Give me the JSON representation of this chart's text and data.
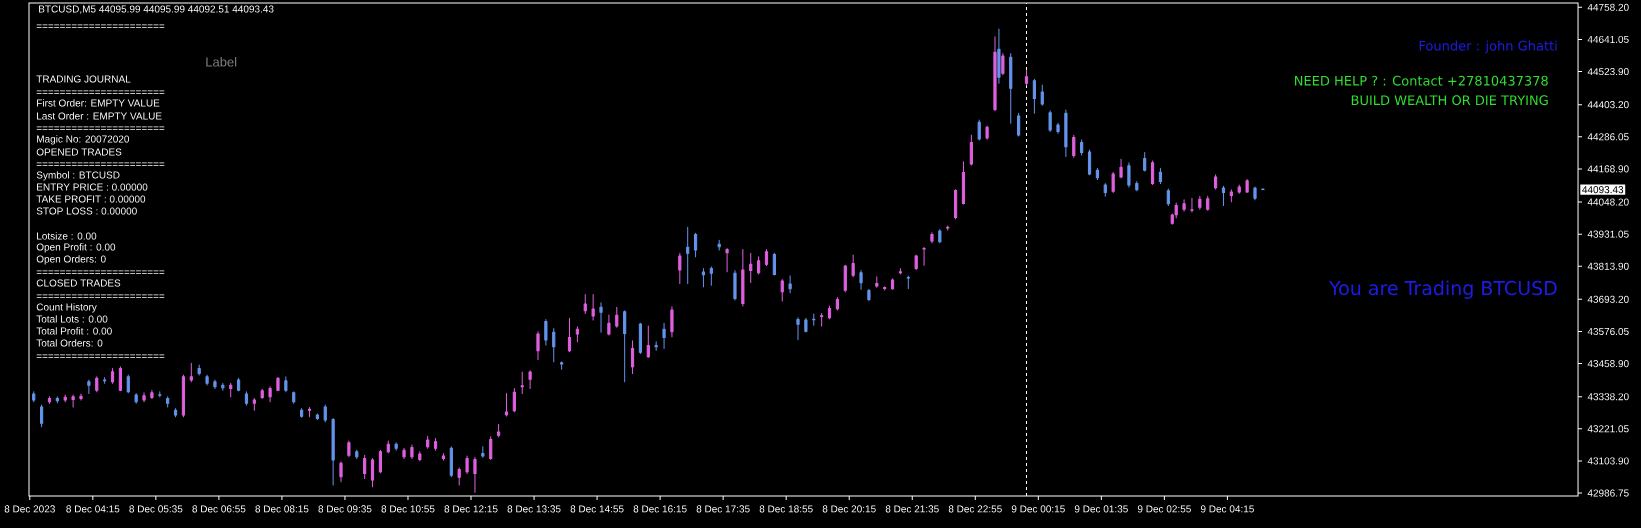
{
  "chart_data": {
    "type": "candlestick",
    "title": "BTCUSD,M5 44095.99 44095.99 44092.51 44093.43",
    "x": [
      "2023-12-08T03:00",
      "2023-12-08T03:10",
      "2023-12-08T03:20",
      "2023-12-08T03:30",
      "2023-12-08T03:40",
      "2023-12-08T03:50",
      "2023-12-08T04:00",
      "2023-12-08T04:10",
      "2023-12-08T04:20",
      "2023-12-08T04:30",
      "2023-12-08T04:40",
      "2023-12-08T04:50",
      "2023-12-08T05:00",
      "2023-12-08T05:10",
      "2023-12-08T05:20",
      "2023-12-08T05:30",
      "2023-12-08T05:40",
      "2023-12-08T05:50",
      "2023-12-08T06:00",
      "2023-12-08T06:10",
      "2023-12-08T06:20",
      "2023-12-08T06:30",
      "2023-12-08T06:40",
      "2023-12-08T06:50",
      "2023-12-08T07:00",
      "2023-12-08T07:10",
      "2023-12-08T07:20",
      "2023-12-08T07:30",
      "2023-12-08T07:40",
      "2023-12-08T07:50",
      "2023-12-08T08:00",
      "2023-12-08T08:10",
      "2023-12-08T08:20",
      "2023-12-08T08:30",
      "2023-12-08T08:40",
      "2023-12-08T08:50",
      "2023-12-08T09:00",
      "2023-12-08T09:10",
      "2023-12-08T09:20",
      "2023-12-08T09:30",
      "2023-12-08T09:40",
      "2023-12-08T09:50",
      "2023-12-08T10:00",
      "2023-12-08T10:10",
      "2023-12-08T10:20",
      "2023-12-08T10:30",
      "2023-12-08T10:40",
      "2023-12-08T10:50",
      "2023-12-08T11:00",
      "2023-12-08T11:10",
      "2023-12-08T11:20",
      "2023-12-08T11:30",
      "2023-12-08T11:40",
      "2023-12-08T11:50",
      "2023-12-08T12:00",
      "2023-12-08T12:10",
      "2023-12-08T12:20",
      "2023-12-08T12:30",
      "2023-12-08T12:40",
      "2023-12-08T12:50",
      "2023-12-08T13:00",
      "2023-12-08T13:10",
      "2023-12-08T13:20",
      "2023-12-08T13:30",
      "2023-12-08T13:40",
      "2023-12-08T13:50",
      "2023-12-08T14:00",
      "2023-12-08T14:10",
      "2023-12-08T14:20",
      "2023-12-08T14:30",
      "2023-12-08T14:40",
      "2023-12-08T14:50",
      "2023-12-08T15:00",
      "2023-12-08T15:10",
      "2023-12-08T15:20",
      "2023-12-08T15:30",
      "2023-12-08T15:40",
      "2023-12-08T15:50",
      "2023-12-08T16:00",
      "2023-12-08T16:10",
      "2023-12-08T16:20",
      "2023-12-08T16:30",
      "2023-12-08T16:40",
      "2023-12-08T16:50",
      "2023-12-08T17:00",
      "2023-12-08T17:10",
      "2023-12-08T17:20",
      "2023-12-08T17:30",
      "2023-12-08T17:40",
      "2023-12-08T17:50",
      "2023-12-08T18:00",
      "2023-12-08T18:10",
      "2023-12-08T18:20",
      "2023-12-08T18:30",
      "2023-12-08T18:40",
      "2023-12-08T18:50",
      "2023-12-08T19:00",
      "2023-12-08T19:10",
      "2023-12-08T19:20",
      "2023-12-08T19:30",
      "2023-12-08T19:40",
      "2023-12-08T19:50",
      "2023-12-08T20:00",
      "2023-12-08T20:10",
      "2023-12-08T20:20",
      "2023-12-08T20:30",
      "2023-12-08T20:40",
      "2023-12-08T20:50",
      "2023-12-08T21:00",
      "2023-12-08T21:10",
      "2023-12-08T21:20",
      "2023-12-08T21:30",
      "2023-12-08T21:40",
      "2023-12-08T21:50",
      "2023-12-08T22:00",
      "2023-12-08T22:10",
      "2023-12-08T22:20",
      "2023-12-08T22:30",
      "2023-12-08T22:40",
      "2023-12-08T22:50",
      "2023-12-08T23:00",
      "2023-12-08T23:10",
      "2023-12-08T23:20",
      "2023-12-08T23:25",
      "2023-12-08T23:30",
      "2023-12-08T23:40",
      "2023-12-08T23:50",
      "2023-12-09T00:00",
      "2023-12-09T00:10",
      "2023-12-09T00:20",
      "2023-12-09T00:30",
      "2023-12-09T00:40",
      "2023-12-09T00:50",
      "2023-12-09T01:00",
      "2023-12-09T01:10",
      "2023-12-09T01:20",
      "2023-12-09T01:30",
      "2023-12-09T01:40",
      "2023-12-09T01:50",
      "2023-12-09T02:00",
      "2023-12-09T02:10",
      "2023-12-09T02:20",
      "2023-12-09T02:30",
      "2023-12-09T02:40",
      "2023-12-09T02:50",
      "2023-12-09T03:00",
      "2023-12-09T03:05",
      "2023-12-09T03:10",
      "2023-12-09T03:20",
      "2023-12-09T03:30",
      "2023-12-09T03:40",
      "2023-12-09T03:50",
      "2023-12-09T04:00",
      "2023-12-09T04:10",
      "2023-12-09T04:20",
      "2023-12-09T04:30",
      "2023-12-09T04:40",
      "2023-12-09T04:50",
      "2023-12-09T05:00"
    ],
    "ohlc": [
      [
        43348,
        43356,
        43320,
        43326
      ],
      [
        43301,
        43308,
        43229,
        43241
      ],
      [
        43320,
        43338,
        43314,
        43332
      ],
      [
        43332,
        43338,
        43316,
        43323
      ],
      [
        43326,
        43344,
        43320,
        43336
      ],
      [
        43328,
        43344,
        43301,
        43338
      ],
      [
        43332,
        43348,
        43326,
        43340
      ],
      [
        43393,
        43399,
        43350,
        43380
      ],
      [
        43362,
        43411,
        43356,
        43405
      ],
      [
        43399,
        43408,
        43387,
        43396
      ],
      [
        43393,
        43441,
        43387,
        43429
      ],
      [
        43362,
        43447,
        43360,
        43441
      ],
      [
        43411,
        43417,
        43353,
        43356
      ],
      [
        43344,
        43350,
        43314,
        43320
      ],
      [
        43326,
        43353,
        43320,
        43342
      ],
      [
        43335,
        43362,
        43332,
        43353
      ],
      [
        43345,
        43356,
        43338,
        43343
      ],
      [
        43332,
        43338,
        43301,
        43314
      ],
      [
        43289,
        43295,
        43265,
        43271
      ],
      [
        43271,
        43417,
        43265,
        43411
      ],
      [
        43399,
        43460,
        43393,
        43411
      ],
      [
        43441,
        43454,
        43417,
        43423
      ],
      [
        43411,
        43417,
        43381,
        43387
      ],
      [
        43393,
        43399,
        43368,
        43374
      ],
      [
        43380,
        43387,
        43362,
        43371
      ],
      [
        43368,
        43387,
        43338,
        43380
      ],
      [
        43399,
        43405,
        43360,
        43362
      ],
      [
        43348,
        43356,
        43308,
        43314
      ],
      [
        43314,
        43332,
        43289,
        43326
      ],
      [
        43335,
        43365,
        43332,
        43360
      ],
      [
        43338,
        43374,
        43320,
        43368
      ],
      [
        43362,
        43408,
        43360,
        43405
      ],
      [
        43396,
        43411,
        43356,
        43362
      ],
      [
        43353,
        43356,
        43314,
        43320
      ],
      [
        43289,
        43295,
        43263,
        43267
      ],
      [
        43289,
        43299,
        43265,
        43292
      ],
      [
        43271,
        43275,
        43255,
        43259
      ],
      [
        43301,
        43308,
        43247,
        43253
      ],
      [
        43255,
        43259,
        43016,
        43107
      ],
      [
        43046,
        43101,
        43028,
        43095
      ],
      [
        43125,
        43177,
        43119,
        43170
      ],
      [
        43137,
        43143,
        43113,
        43119
      ],
      [
        43058,
        43125,
        43040,
        43113
      ],
      [
        43034,
        43113,
        43010,
        43107
      ],
      [
        43064,
        43143,
        43061,
        43137
      ],
      [
        43137,
        43177,
        43134,
        43165
      ],
      [
        43165,
        43170,
        43143,
        43150
      ],
      [
        43119,
        43150,
        43113,
        43143
      ],
      [
        43119,
        43162,
        43113,
        43153
      ],
      [
        43109,
        43137,
        43105,
        43129
      ],
      [
        43156,
        43194,
        43150,
        43180
      ],
      [
        43150,
        43186,
        43143,
        43174
      ],
      [
        43113,
        43131,
        43107,
        43122
      ],
      [
        43150,
        43156,
        43046,
        43052
      ],
      [
        43044,
        43079,
        43016,
        43073
      ],
      [
        43064,
        43122,
        43058,
        43113
      ],
      [
        43058,
        43117,
        42990,
        43109
      ],
      [
        43131,
        43156,
        43117,
        43122
      ],
      [
        43113,
        43192,
        43109,
        43182
      ],
      [
        43198,
        43238,
        43192,
        43209
      ],
      [
        43272,
        43350,
        43268,
        43282
      ],
      [
        43287,
        43368,
        43283,
        43354
      ],
      [
        43374,
        43428,
        43350,
        43378
      ],
      [
        43402,
        43433,
        43368,
        43428
      ],
      [
        43506,
        43575,
        43474,
        43567
      ],
      [
        43612,
        43620,
        43527,
        43545
      ],
      [
        43573,
        43587,
        43466,
        43520
      ],
      [
        43462,
        43466,
        43438,
        43457
      ],
      [
        43506,
        43624,
        43502,
        43554
      ],
      [
        43567,
        43593,
        43539,
        43584
      ],
      [
        43652,
        43711,
        43642,
        43676
      ],
      [
        43632,
        43711,
        43618,
        43658
      ],
      [
        43664,
        43681,
        43573,
        43646
      ],
      [
        43567,
        43636,
        43563,
        43606
      ],
      [
        43596,
        43664,
        43591,
        43635
      ],
      [
        43648,
        43652,
        43393,
        43569
      ],
      [
        43447,
        43542,
        43423,
        43514
      ],
      [
        43603,
        43606,
        43496,
        43500
      ],
      [
        43484,
        43596,
        43481,
        43525
      ],
      [
        43525,
        43539,
        43508,
        43520
      ],
      [
        43584,
        43606,
        43514,
        43554
      ],
      [
        43575,
        43666,
        43557,
        43654
      ],
      [
        43800,
        43861,
        43751,
        43851
      ],
      [
        43883,
        43956,
        43751,
        43861
      ],
      [
        43930,
        43934,
        43849,
        43873
      ],
      [
        43793,
        43806,
        43739,
        43783
      ],
      [
        43806,
        43812,
        43745,
        43788
      ],
      [
        43894,
        43909,
        43873,
        43885
      ],
      [
        43863,
        43879,
        43794,
        43875
      ],
      [
        43788,
        43798,
        43691,
        43696
      ],
      [
        43678,
        43875,
        43669,
        43800
      ],
      [
        43798,
        43861,
        43755,
        43821
      ],
      [
        43790,
        43849,
        43786,
        43834
      ],
      [
        43821,
        43875,
        43817,
        43867
      ],
      [
        43857,
        43861,
        43782,
        43784
      ],
      [
        43721,
        43766,
        43687,
        43760
      ],
      [
        43749,
        43779,
        43717,
        43732
      ],
      [
        43620,
        43626,
        43547,
        43602
      ],
      [
        43618,
        43624,
        43574,
        43577
      ],
      [
        43621,
        43640,
        43599,
        43619
      ],
      [
        43631,
        43642,
        43596,
        43633
      ],
      [
        43626,
        43669,
        43622,
        43660
      ],
      [
        43659,
        43700,
        43654,
        43693
      ],
      [
        43726,
        43818,
        43721,
        43815
      ],
      [
        43781,
        43855,
        43776,
        43824
      ],
      [
        43790,
        43798,
        43730,
        43754
      ],
      [
        43725,
        43730,
        43688,
        43693
      ],
      [
        43742,
        43776,
        43737,
        43751
      ],
      [
        43733,
        43739,
        43727,
        43736
      ],
      [
        43732,
        43768,
        43730,
        43764
      ],
      [
        43790,
        43806,
        43786,
        43794
      ],
      [
        43773,
        43778,
        43733,
        43771
      ],
      [
        43806,
        43855,
        43802,
        43851
      ],
      [
        43877,
        43883,
        43818,
        43879
      ],
      [
        43906,
        43936,
        43900,
        43930
      ],
      [
        43942,
        43948,
        43900,
        43903
      ],
      [
        43953,
        43961,
        43946,
        43956
      ],
      [
        43992,
        44094,
        43987,
        44090
      ],
      [
        44043,
        44195,
        44041,
        44156
      ],
      [
        44187,
        44293,
        44183,
        44265
      ],
      [
        44339,
        44347,
        44274,
        44278
      ],
      [
        44282,
        44325,
        44277,
        44321
      ],
      [
        44386,
        44651,
        44381,
        44594
      ],
      [
        44605,
        44679,
        44481,
        44503
      ],
      [
        44518,
        44590,
        44512,
        44581
      ],
      [
        44576,
        44590,
        44335,
        44463
      ],
      [
        44362,
        44372,
        44289,
        44293
      ],
      [
        44481,
        44530,
        44475,
        44505
      ],
      [
        44490,
        44496,
        44372,
        44426
      ],
      [
        44449,
        44475,
        44401,
        44406
      ],
      [
        44374,
        44381,
        44305,
        44311
      ],
      [
        44329,
        44335,
        44299,
        44305
      ],
      [
        44372,
        44384,
        44214,
        44250
      ],
      [
        44218,
        44292,
        44211,
        44283
      ],
      [
        44265,
        44275,
        44220,
        44229
      ],
      [
        44231,
        44238,
        44148,
        44150
      ],
      [
        44164,
        44171,
        44130,
        44137
      ],
      [
        44110,
        44116,
        44069,
        44083
      ],
      [
        44087,
        44157,
        44083,
        44150
      ],
      [
        44139,
        44204,
        44137,
        44175
      ],
      [
        44180,
        44191,
        44103,
        44110
      ],
      [
        44116,
        44123,
        44089,
        44093
      ],
      [
        44207,
        44229,
        44161,
        44164
      ],
      [
        44116,
        44198,
        44112,
        44191
      ],
      [
        44157,
        44171,
        44116,
        44123
      ],
      [
        44089,
        44096,
        44035,
        44042
      ],
      [
        43971,
        44004,
        43967,
        44001
      ],
      [
        44002,
        44045,
        43991,
        44035
      ],
      [
        44022,
        44056,
        44015,
        44042
      ],
      [
        44018,
        44062,
        44012,
        44020
      ],
      [
        44029,
        44069,
        44022,
        44058
      ],
      [
        44022,
        44069,
        44018,
        44060
      ],
      [
        44100,
        44148,
        44096,
        44139
      ],
      [
        44099,
        44106,
        44035,
        44083
      ],
      [
        44072,
        44093,
        44049,
        44085
      ],
      [
        44085,
        44110,
        44080,
        44103
      ],
      [
        44085,
        44130,
        44083,
        44126
      ],
      [
        44099,
        44103,
        44056,
        44062
      ],
      [
        44095.99,
        44095.99,
        44092.51,
        44093.43
      ]
    ],
    "colors": [
      "#6495ed",
      "#6495ed",
      "#e060e0",
      "#6495ed",
      "#e060e0",
      "#e060e0",
      "#e060e0",
      "#6495ed",
      "#e060e0",
      "#6495ed",
      "#e060e0",
      "#e060e0",
      "#6495ed",
      "#6495ed",
      "#e060e0",
      "#e060e0",
      "#6495ed",
      "#6495ed",
      "#6495ed",
      "#e060e0",
      "#e060e0",
      "#6495ed",
      "#6495ed",
      "#6495ed",
      "#6495ed",
      "#e060e0",
      "#6495ed",
      "#6495ed",
      "#e060e0",
      "#e060e0",
      "#e060e0",
      "#e060e0",
      "#6495ed",
      "#6495ed",
      "#6495ed",
      "#e060e0",
      "#6495ed",
      "#6495ed",
      "#6495ed",
      "#e060e0",
      "#e060e0",
      "#6495ed",
      "#e060e0",
      "#e060e0",
      "#e060e0",
      "#e060e0",
      "#6495ed",
      "#e060e0",
      "#e060e0",
      "#e060e0",
      "#e060e0",
      "#e060e0",
      "#e060e0",
      "#6495ed",
      "#e060e0",
      "#e060e0",
      "#e060e0",
      "#6495ed",
      "#e060e0",
      "#e060e0",
      "#e060e0",
      "#e060e0",
      "#e060e0",
      "#e060e0",
      "#e060e0",
      "#6495ed",
      "#6495ed",
      "#6495ed",
      "#e060e0",
      "#e060e0",
      "#e060e0",
      "#e060e0",
      "#6495ed",
      "#e060e0",
      "#e060e0",
      "#6495ed",
      "#e060e0",
      "#6495ed",
      "#e060e0",
      "#6495ed",
      "#6495ed",
      "#e060e0",
      "#e060e0",
      "#6495ed",
      "#6495ed",
      "#6495ed",
      "#6495ed",
      "#6495ed",
      "#e060e0",
      "#6495ed",
      "#e060e0",
      "#e060e0",
      "#e060e0",
      "#e060e0",
      "#6495ed",
      "#e060e0",
      "#6495ed",
      "#6495ed",
      "#6495ed",
      "#6495ed",
      "#e060e0",
      "#e060e0",
      "#e060e0",
      "#e060e0",
      "#e060e0",
      "#6495ed",
      "#6495ed",
      "#e060e0",
      "#e060e0",
      "#e060e0",
      "#e060e0",
      "#6495ed",
      "#e060e0",
      "#e060e0",
      "#e060e0",
      "#6495ed",
      "#e060e0",
      "#e060e0",
      "#e060e0",
      "#e060e0",
      "#6495ed",
      "#e060e0",
      "#e060e0",
      "#6495ed",
      "#e060e0",
      "#6495ed",
      "#6495ed",
      "#e060e0",
      "#6495ed",
      "#6495ed",
      "#6495ed",
      "#6495ed",
      "#6495ed",
      "#e060e0",
      "#6495ed",
      "#6495ed",
      "#6495ed",
      "#6495ed",
      "#e060e0",
      "#e060e0",
      "#6495ed",
      "#6495ed",
      "#6495ed",
      "#e060e0",
      "#6495ed",
      "#6495ed",
      "#e060e0",
      "#e060e0",
      "#e060e0",
      "#e060e0",
      "#e060e0",
      "#e060e0",
      "#e060e0",
      "#6495ed",
      "#e060e0",
      "#e060e0",
      "#e060e0",
      "#6495ed",
      "#6495ed"
    ],
    "xlim": [
      "2023-12-08T02:54",
      "2023-12-09T11:40"
    ],
    "xticks": [
      {
        "value": "2023-12-08T02:55",
        "label": "8 Dec 2023"
      },
      {
        "value": "2023-12-08T04:15",
        "label": "8 Dec 04:15"
      },
      {
        "value": "2023-12-08T05:35",
        "label": "8 Dec 05:35"
      },
      {
        "value": "2023-12-08T06:55",
        "label": "8 Dec 06:55"
      },
      {
        "value": "2023-12-08T08:15",
        "label": "8 Dec 08:15"
      },
      {
        "value": "2023-12-08T09:35",
        "label": "8 Dec 09:35"
      },
      {
        "value": "2023-12-08T10:55",
        "label": "8 Dec 10:55"
      },
      {
        "value": "2023-12-08T12:15",
        "label": "8 Dec 12:15"
      },
      {
        "value": "2023-12-08T13:35",
        "label": "8 Dec 13:35"
      },
      {
        "value": "2023-12-08T14:55",
        "label": "8 Dec 14:55"
      },
      {
        "value": "2023-12-08T16:15",
        "label": "8 Dec 16:15"
      },
      {
        "value": "2023-12-08T17:35",
        "label": "8 Dec 17:35"
      },
      {
        "value": "2023-12-08T18:55",
        "label": "8 Dec 18:55"
      },
      {
        "value": "2023-12-08T20:15",
        "label": "8 Dec 20:15"
      },
      {
        "value": "2023-12-08T21:35",
        "label": "8 Dec 21:35"
      },
      {
        "value": "2023-12-08T22:55",
        "label": "8 Dec 22:55"
      },
      {
        "value": "2023-12-09T00:15",
        "label": "9 Dec 00:15"
      },
      {
        "value": "2023-12-09T01:35",
        "label": "9 Dec 01:35"
      },
      {
        "value": "2023-12-09T02:55",
        "label": "9 Dec 02:55"
      },
      {
        "value": "2023-12-09T04:15",
        "label": "9 Dec 04:15"
      }
    ],
    "ylim": [
      42976,
      44774
    ],
    "yticks": [
      {
        "value": 44758.2,
        "label": "44758.20"
      },
      44641.05,
      {
        "value": 44523.9,
        "label": "44523.90"
      },
      {
        "value": 44403.2,
        "label": "44403.20"
      },
      44286.05,
      {
        "value": 44168.9,
        "label": "44168.90"
      },
      {
        "value": 44048.2,
        "label": "44048.20"
      },
      43931.05,
      {
        "value": 43813.9,
        "label": "43813.90"
      },
      {
        "value": 43693.2,
        "label": "43693.20"
      },
      43576.05,
      {
        "value": 43458.9,
        "label": "43458.90"
      },
      {
        "value": 43338.2,
        "label": "43338.20"
      },
      43221.05,
      {
        "value": 43103.9,
        "label": "43103.90"
      },
      42986.75
    ],
    "ref_lines": [
      {
        "axis": "x",
        "value": "2023-12-09T00:00",
        "color": "#ffffff",
        "line_style": "dashed"
      }
    ],
    "annotations": [
      "Label",
      "======================",
      "TRADING JOURNAL",
      "======================",
      "First Order: EMPTY VALUE",
      "Last Order : EMPTY VALUE",
      "======================",
      "Magic No: 20072020",
      "OPENED TRADES",
      "======================",
      "Symbol : BTCUSD",
      "ENTRY PRICE : 0.00000",
      "TAKE PROFIT : 0.00000",
      "STOP LOSS : 0.00000",
      "Lotsize : 0.00",
      "Open Profit : 0.00",
      "Open Orders: 0",
      "======================",
      "CLOSED TRADES",
      "======================",
      "Count History",
      "Total Lots : 0.00",
      "Total Profit : 0.00",
      "Total Orders: 0",
      "======================",
      "Founder : john Ghatti",
      "NEED HELP ? : Contact +27810437378",
      "BUILD WEALTH OR DIE TRYING",
      "You are Trading BTCUSD",
      "44093.43"
    ]
  }
}
